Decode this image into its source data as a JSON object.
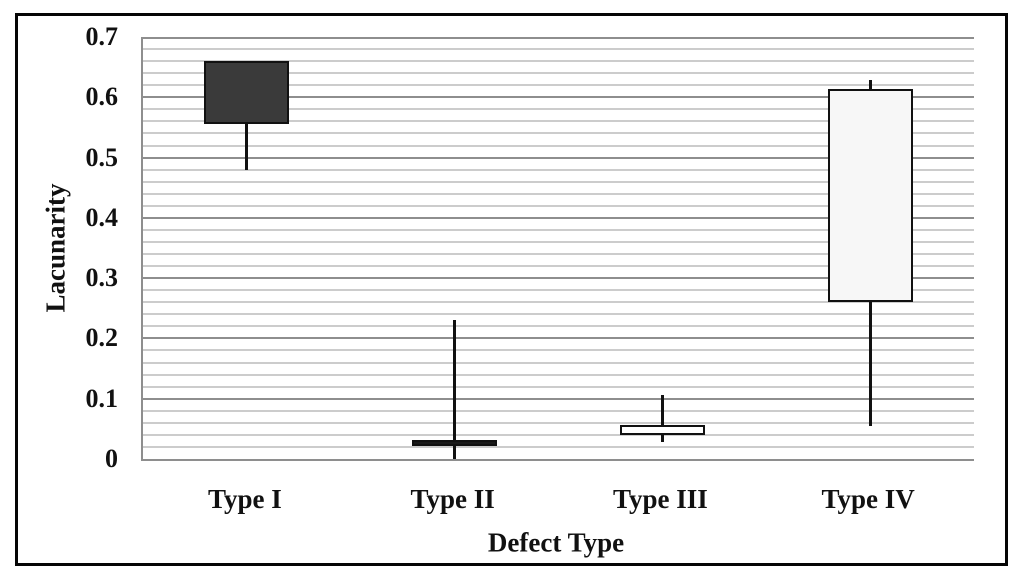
{
  "figure": {
    "background": "#ffffff",
    "border_color": "#050505"
  },
  "chart_data": {
    "type": "box",
    "title": "",
    "xlabel": "Defect Type",
    "ylabel": "Lacunarity",
    "categories": [
      "Type I",
      "Type II",
      "Type III",
      "Type IV"
    ],
    "ylim": [
      0,
      0.7
    ],
    "ytick_interval": 0.1,
    "ytick_labels": [
      "0",
      "0.1",
      "0.2",
      "0.3",
      "0.4",
      "0.5",
      "0.6",
      "0.7"
    ],
    "minor_grid_interval": 0.02,
    "grid": "horizontal",
    "legend": "none",
    "series": [
      {
        "category": "Type I",
        "whisker_low": 0.48,
        "q1": 0.556,
        "median": null,
        "q3": 0.66,
        "whisker_high": 0.66,
        "fill": "#3a3a3a"
      },
      {
        "category": "Type II",
        "whisker_low": 0.0,
        "q1": 0.022,
        "median": null,
        "q3": 0.031,
        "whisker_high": 0.23,
        "fill": "#1a1a1a"
      },
      {
        "category": "Type III",
        "whisker_low": 0.029,
        "q1": 0.04,
        "median": null,
        "q3": 0.057,
        "whisker_high": 0.106,
        "fill": "#ffffff"
      },
      {
        "category": "Type IV",
        "whisker_low": 0.055,
        "q1": 0.26,
        "median": null,
        "q3": 0.614,
        "whisker_high": 0.628,
        "fill": "#f7f7f7"
      }
    ],
    "colors": {
      "box_border": "#111111",
      "whisker": "#111111",
      "minor_grid": "#cccccc",
      "major_grid": "#8e8e8e",
      "axis_line": "#8e8e8e",
      "text": "#111111"
    }
  }
}
